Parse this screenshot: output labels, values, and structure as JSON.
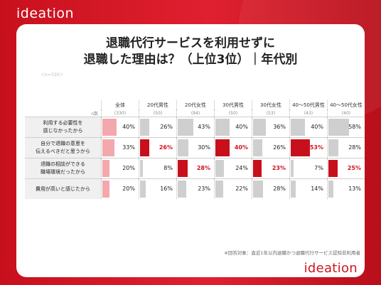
{
  "brand": {
    "logo": "ideation"
  },
  "title": {
    "line1": "退職代行サービスを利用せずに",
    "line2": "退職した理由は？（上位3位）｜年代別"
  },
  "sample_label": "＜n=330＞",
  "footnote": "※回答対象：直近1年以内退職かつ退職代行サービス認知非利用者",
  "colors": {
    "total_bar": "#f3a8ad",
    "normal_bar": "#cfcfcf",
    "highlight_bar": "#c8101c",
    "brand": "#d0141f"
  },
  "table": {
    "n_label": "n数",
    "columns": [
      {
        "label": "全体",
        "n": "(330)"
      },
      {
        "label": "20代男性",
        "n": "(50)"
      },
      {
        "label": "20代女性",
        "n": "(94)"
      },
      {
        "label": "30代男性",
        "n": "(50)"
      },
      {
        "label": "30代女性",
        "n": "(53)"
      },
      {
        "label": "40〜50代男性",
        "n": "(43)"
      },
      {
        "label": "40〜50代女性",
        "n": "(40)"
      }
    ],
    "rows": [
      {
        "label_lines": [
          "利用する必要性を",
          "感じなかったから"
        ],
        "values": [
          40,
          26,
          43,
          40,
          36,
          40,
          58
        ],
        "highlight": [
          false,
          false,
          false,
          false,
          false,
          false,
          false
        ]
      },
      {
        "label_lines": [
          "自分で退職の意思を",
          "伝えるべきだと思うから"
        ],
        "values": [
          33,
          26,
          30,
          40,
          26,
          53,
          28
        ],
        "highlight": [
          false,
          true,
          false,
          true,
          false,
          true,
          false
        ]
      },
      {
        "label_lines": [
          "退職の相談ができる",
          "職場環境だったから"
        ],
        "values": [
          20,
          8,
          28,
          24,
          23,
          7,
          25
        ],
        "highlight": [
          false,
          false,
          true,
          false,
          true,
          false,
          true
        ]
      },
      {
        "label_lines": [
          "費用が高いと感じたから"
        ],
        "values": [
          20,
          16,
          23,
          22,
          28,
          14,
          13
        ],
        "highlight": [
          false,
          false,
          false,
          false,
          false,
          false,
          false
        ]
      }
    ]
  }
}
